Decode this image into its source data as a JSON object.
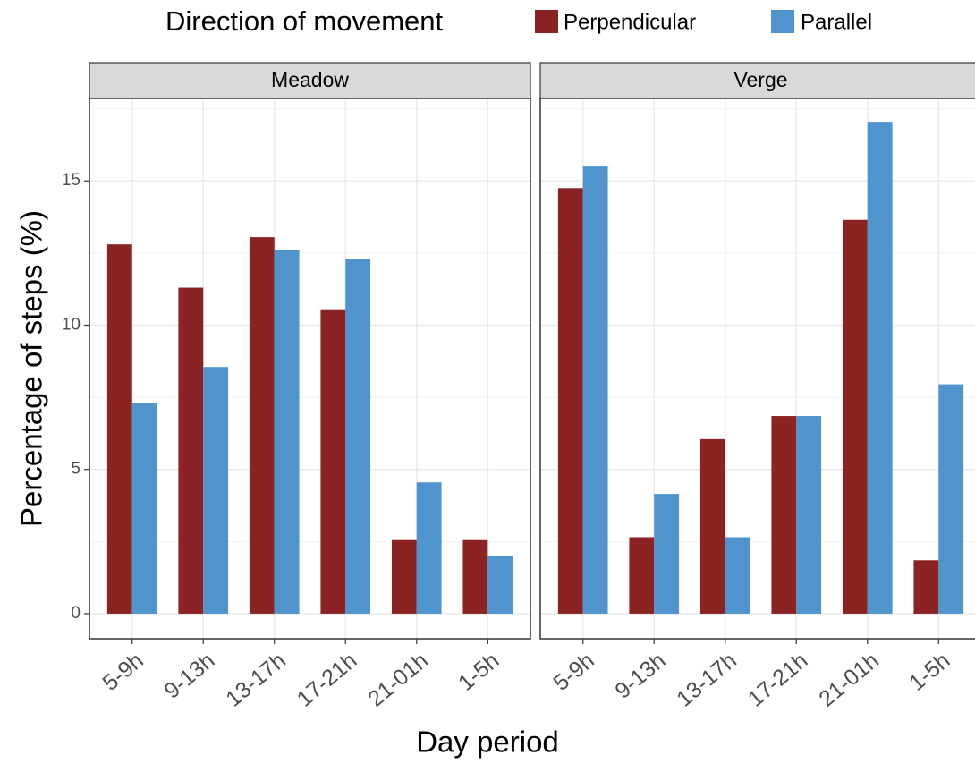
{
  "chart_data": {
    "type": "bar",
    "legend_title": "Direction of movement",
    "x_label": "Day period",
    "y_label": "Percentage of steps (%)",
    "categories": [
      "5-9h",
      "9-13h",
      "13-17h",
      "17-21h",
      "21-01h",
      "1-5h"
    ],
    "series": [
      {
        "name": "Perpendicular",
        "color": "#8b2323"
      },
      {
        "name": "Parallel",
        "color": "#4f94cd"
      }
    ],
    "facets": [
      {
        "title": "Meadow",
        "values": [
          [
            12.8,
            11.3,
            13.05,
            10.55,
            2.55,
            2.55
          ],
          [
            7.3,
            8.55,
            12.6,
            12.3,
            4.55,
            2.0
          ]
        ]
      },
      {
        "title": "Verge",
        "values": [
          [
            14.75,
            2.65,
            6.05,
            6.85,
            13.65,
            1.85
          ],
          [
            15.5,
            4.15,
            2.65,
            6.85,
            17.05,
            7.95
          ]
        ]
      }
    ],
    "ylim": [
      -0.87,
      17.86
    ],
    "yticks": [
      0,
      5,
      10,
      15
    ],
    "grid": true
  }
}
